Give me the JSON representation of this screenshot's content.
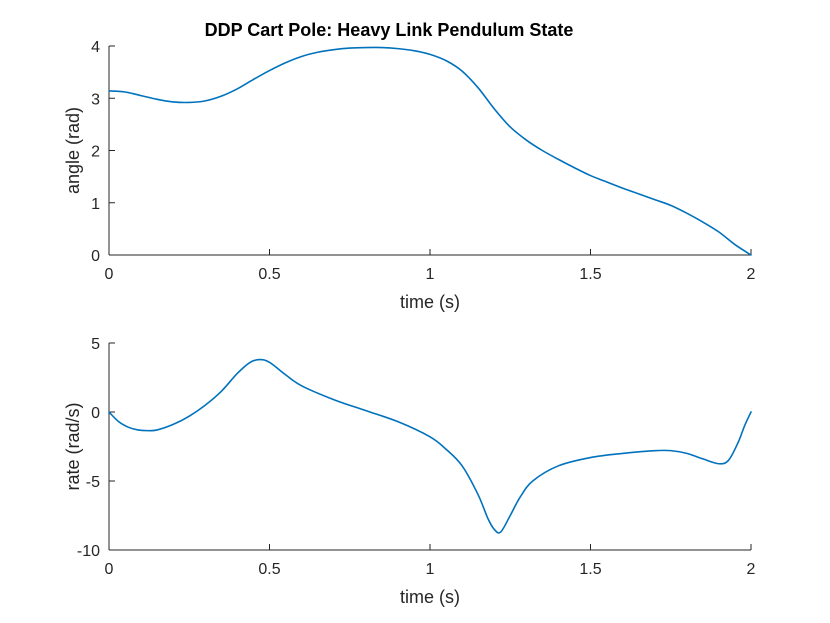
{
  "figure_title": "DDP Cart Pole: Heavy Link Pendulum State",
  "line_color": "#0072BD",
  "chart_data": [
    {
      "type": "line",
      "title": "DDP Cart Pole: Heavy Link Pendulum State",
      "xlabel": "time (s)",
      "ylabel": "angle (rad)",
      "xlim": [
        0,
        2
      ],
      "ylim": [
        0,
        4
      ],
      "xticks": [
        0,
        0.5,
        1,
        1.5,
        2
      ],
      "xtick_labels": [
        "0",
        "0.5",
        "1",
        "1.5",
        "2"
      ],
      "yticks": [
        0,
        1,
        2,
        3,
        4
      ],
      "ytick_labels": [
        "0",
        "1",
        "2",
        "3",
        "4"
      ],
      "grid": false,
      "series": [
        {
          "x": [
            0,
            0.05,
            0.1,
            0.15,
            0.2,
            0.25,
            0.3,
            0.35,
            0.4,
            0.45,
            0.5,
            0.55,
            0.6,
            0.65,
            0.7,
            0.75,
            0.8,
            0.85,
            0.9,
            0.95,
            1.0,
            1.05,
            1.1,
            1.15,
            1.2,
            1.25,
            1.3,
            1.35,
            1.4,
            1.45,
            1.5,
            1.55,
            1.6,
            1.65,
            1.7,
            1.75,
            1.8,
            1.85,
            1.9,
            1.95,
            2.0
          ],
          "y": [
            3.14,
            3.12,
            3.05,
            2.98,
            2.93,
            2.92,
            2.95,
            3.04,
            3.18,
            3.36,
            3.53,
            3.68,
            3.8,
            3.88,
            3.93,
            3.96,
            3.97,
            3.97,
            3.95,
            3.91,
            3.84,
            3.72,
            3.52,
            3.2,
            2.8,
            2.45,
            2.2,
            2.0,
            1.83,
            1.67,
            1.52,
            1.4,
            1.28,
            1.17,
            1.06,
            0.95,
            0.8,
            0.63,
            0.44,
            0.2,
            0.0
          ]
        }
      ]
    },
    {
      "type": "line",
      "xlabel": "time (s)",
      "ylabel": "rate (rad/s)",
      "xlim": [
        0,
        2
      ],
      "ylim": [
        -10,
        5
      ],
      "xticks": [
        0,
        0.5,
        1,
        1.5,
        2
      ],
      "xtick_labels": [
        "0",
        "0.5",
        "1",
        "1.5",
        "2"
      ],
      "yticks": [
        -10,
        -5,
        0,
        5
      ],
      "ytick_labels": [
        "-10",
        "-5",
        "0",
        "5"
      ],
      "grid": false,
      "series": [
        {
          "x": [
            0,
            0.03,
            0.06,
            0.09,
            0.12,
            0.15,
            0.2,
            0.25,
            0.3,
            0.35,
            0.4,
            0.44,
            0.47,
            0.5,
            0.55,
            0.6,
            0.7,
            0.8,
            0.9,
            1.0,
            1.05,
            1.1,
            1.15,
            1.18,
            1.2,
            1.22,
            1.25,
            1.28,
            1.32,
            1.4,
            1.5,
            1.6,
            1.7,
            1.75,
            1.8,
            1.85,
            1.9,
            1.93,
            1.96,
            1.98,
            2.0
          ],
          "y": [
            0,
            -0.7,
            -1.1,
            -1.3,
            -1.35,
            -1.3,
            -0.9,
            -0.3,
            0.5,
            1.5,
            2.8,
            3.6,
            3.8,
            3.6,
            2.7,
            1.9,
            0.9,
            0.1,
            -0.7,
            -1.8,
            -2.7,
            -3.9,
            -6.0,
            -7.7,
            -8.5,
            -8.7,
            -7.5,
            -6.2,
            -5.0,
            -3.9,
            -3.3,
            -3.0,
            -2.8,
            -2.8,
            -3.0,
            -3.4,
            -3.75,
            -3.5,
            -2.2,
            -1.0,
            0.0
          ]
        }
      ]
    }
  ]
}
